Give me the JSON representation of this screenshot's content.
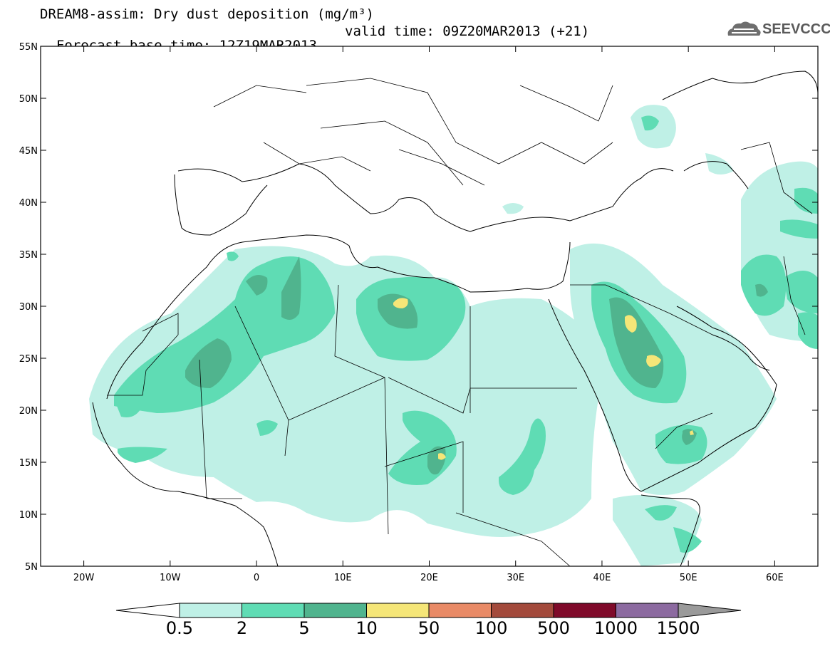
{
  "header": {
    "title_line1": "DREAM8-assim: Dry dust deposition (mg/m³)",
    "forecast_base": "Forecast base time: 12Z19MAR2013",
    "valid_time": "valid time: 09Z20MAR2013 (+21)"
  },
  "logo": {
    "text": "SEEVCCC",
    "icon": "cloud-icon"
  },
  "map": {
    "lon_range": [
      -25,
      65
    ],
    "lat_range": [
      5,
      55
    ],
    "lat_ticks": [
      {
        "value": 55,
        "label": "55N"
      },
      {
        "value": 50,
        "label": "50N"
      },
      {
        "value": 45,
        "label": "45N"
      },
      {
        "value": 40,
        "label": "40N"
      },
      {
        "value": 35,
        "label": "35N"
      },
      {
        "value": 30,
        "label": "30N"
      },
      {
        "value": 25,
        "label": "25N"
      },
      {
        "value": 20,
        "label": "20N"
      },
      {
        "value": 15,
        "label": "15N"
      },
      {
        "value": 10,
        "label": "10N"
      },
      {
        "value": 5,
        "label": "5N"
      }
    ],
    "lon_ticks": [
      {
        "value": -20,
        "label": "20W"
      },
      {
        "value": -10,
        "label": "10W"
      },
      {
        "value": 0,
        "label": "0"
      },
      {
        "value": 10,
        "label": "10E"
      },
      {
        "value": 20,
        "label": "20E"
      },
      {
        "value": 30,
        "label": "30E"
      },
      {
        "value": 40,
        "label": "40E"
      },
      {
        "value": 50,
        "label": "50E"
      },
      {
        "value": 60,
        "label": "60E"
      }
    ]
  },
  "colorbar": {
    "labels": [
      "0.5",
      "2",
      "5",
      "10",
      "50",
      "100",
      "500",
      "1000",
      "1500"
    ],
    "colors": [
      "#bff0e6",
      "#5fdcb4",
      "#50b48e",
      "#f5e678",
      "#e98a66",
      "#a34a3c",
      "#7f0a2a",
      "#8c6aa0",
      "#9a9a9a"
    ],
    "low_end_color": "#ffffff"
  }
}
